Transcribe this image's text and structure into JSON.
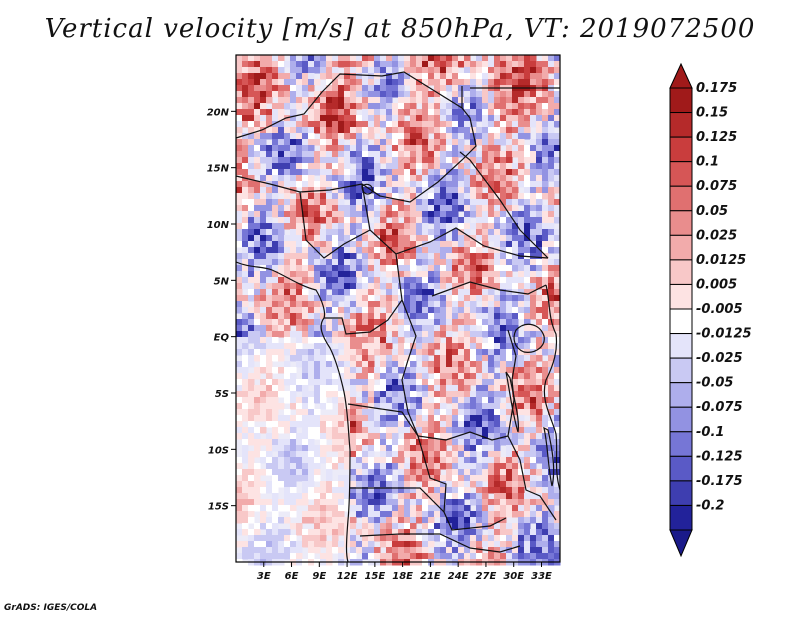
{
  "title": "Vertical velocity [m/s] at 850hPa, VT: 2019072500",
  "credit": "GrADS: IGES/COLA",
  "map": {
    "lon_range": [
      0,
      35
    ],
    "lat_range": [
      -20,
      25
    ],
    "lon_ticks": [
      "3E",
      "6E",
      "9E",
      "12E",
      "15E",
      "18E",
      "21E",
      "24E",
      "27E",
      "30E",
      "33E"
    ],
    "lat_ticks": [
      "20N",
      "15N",
      "10N",
      "5N",
      "EQ",
      "5S",
      "10S",
      "15S"
    ],
    "field": "vertical velocity, blue = negative (ascent), red = positive"
  },
  "colorbar": {
    "labels": [
      "0.175",
      "0.15",
      "0.125",
      "0.1",
      "0.075",
      "0.05",
      "0.025",
      "0.0125",
      "0.005",
      "-0.005",
      "-0.0125",
      "-0.025",
      "-0.05",
      "-0.075",
      "-0.1",
      "-0.125",
      "-0.175",
      "-0.2"
    ],
    "colors": [
      "#a01a1a",
      "#b52a2a",
      "#c93d3d",
      "#d65656",
      "#e07070",
      "#e98d8d",
      "#f2abab",
      "#f8c8c8",
      "#fde3e3",
      "#ffffff",
      "#e4e4fa",
      "#c9c9f3",
      "#aeaeec",
      "#9292e2",
      "#7676d6",
      "#5a5ac6",
      "#3e3eb0",
      "#22229a"
    ],
    "top_arrow_color": "#a01a1a",
    "bottom_arrow_color": "#1a1a8a"
  }
}
